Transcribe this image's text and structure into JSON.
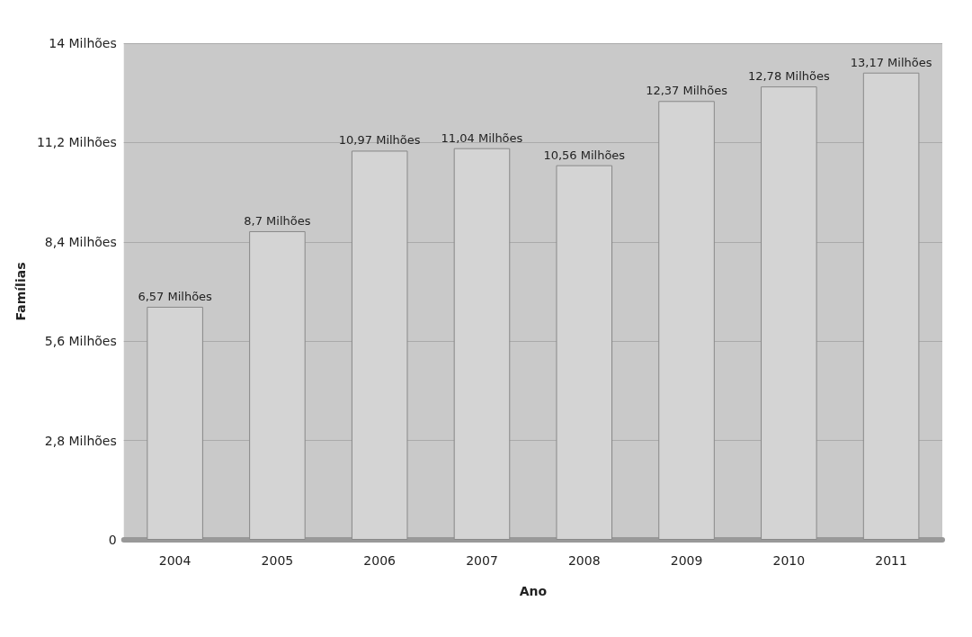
{
  "chart_data": {
    "type": "bar",
    "xlabel": "Ano",
    "ylabel": "Famílias",
    "categories": [
      "2004",
      "2005",
      "2006",
      "2007",
      "2008",
      "2009",
      "2010",
      "2011"
    ],
    "values": [
      6.57,
      8.7,
      10.97,
      11.04,
      10.56,
      12.37,
      12.78,
      13.17
    ],
    "value_labels": [
      "6,57 Milhões",
      "8,7 Milhões",
      "10,97 Milhões",
      "11,04 Milhões",
      "10,56 Milhões",
      "12,37 Milhões",
      "12,78 Milhões",
      "13,17 Milhões"
    ],
    "color": "#d4d4d4",
    "ylim": [
      0,
      14
    ],
    "yticks": [
      0,
      {
        "value": 2.8,
        "label": "2,8 Milhões"
      },
      {
        "value": 5.6,
        "label": "5,6 Milhões"
      },
      {
        "value": 8.4,
        "label": "8,4 Milhões"
      },
      {
        "value": 11.2,
        "label": "11,2 Milhões"
      },
      {
        "value": 14,
        "label": "14 Milhões"
      }
    ],
    "grid": "y"
  }
}
